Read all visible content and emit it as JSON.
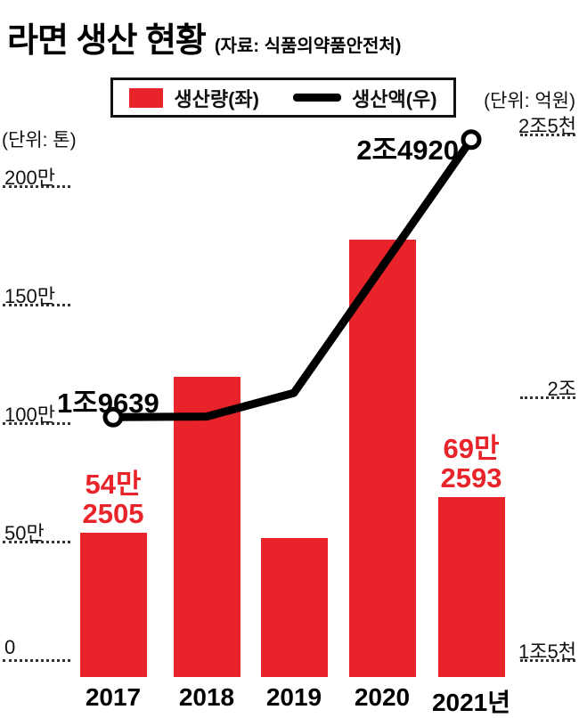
{
  "header": {
    "title": "라면 생산 현황",
    "source": "(자료: 식품의약품안전처)"
  },
  "units": {
    "left": "(단위: 톤)",
    "right": "(단위: 억원)"
  },
  "legend": {
    "items": [
      {
        "label": "생산량(좌)",
        "swatch": "bar",
        "color": "#e8232a"
      },
      {
        "label": "생산액(우)",
        "swatch": "line",
        "color": "#000000"
      }
    ]
  },
  "colors": {
    "red": "#e8232a",
    "line": "#000000",
    "grid": "#333333"
  },
  "annotations": {
    "bar_2017": {
      "line1": "54만",
      "line2": "2505"
    },
    "bar_2021": {
      "line1": "69만",
      "line2": "2593"
    },
    "line_2017": "1조9639",
    "line_2021": "2조4920"
  },
  "chart_data": {
    "type": "bar+line",
    "title": "라면 생산 현황",
    "source": "식품의약품안전처",
    "categories": [
      "2017",
      "2018",
      "2019",
      "2020",
      "2021년"
    ],
    "series": [
      {
        "name": "생산량(좌)",
        "type": "bar",
        "axis": "left",
        "unit": "톤",
        "color": "#e8232a",
        "values": [
          542505,
          1200000,
          520000,
          1780000,
          692593
        ],
        "labeled_values": {
          "2017": "54만 2505",
          "2021": "69만 2593"
        }
      },
      {
        "name": "생산액(우)",
        "type": "line",
        "axis": "right",
        "unit": "억원",
        "color": "#000000",
        "values": [
          19639,
          19650,
          20100,
          22500,
          24920
        ],
        "labeled_values": {
          "2017": "1조9639",
          "2021": "2조4920"
        }
      }
    ],
    "left_axis": {
      "unit": "톤",
      "range": [
        0,
        2000000
      ],
      "ticks": [
        {
          "label": "200만",
          "value": 2000000
        },
        {
          "label": "150만",
          "value": 1500000
        },
        {
          "label": "100만",
          "value": 1000000
        },
        {
          "label": "50만",
          "value": 500000
        },
        {
          "label": "0",
          "value": 0
        }
      ]
    },
    "right_axis": {
      "unit": "억원",
      "range": [
        15000,
        25000
      ],
      "ticks": [
        {
          "label": "2조5천",
          "value": 25000
        },
        {
          "label": "2조",
          "value": 20000
        },
        {
          "label": "1조5천",
          "value": 15000
        }
      ]
    },
    "grid": "short dotted tick segments at left and right edges",
    "legend_position": "top"
  }
}
